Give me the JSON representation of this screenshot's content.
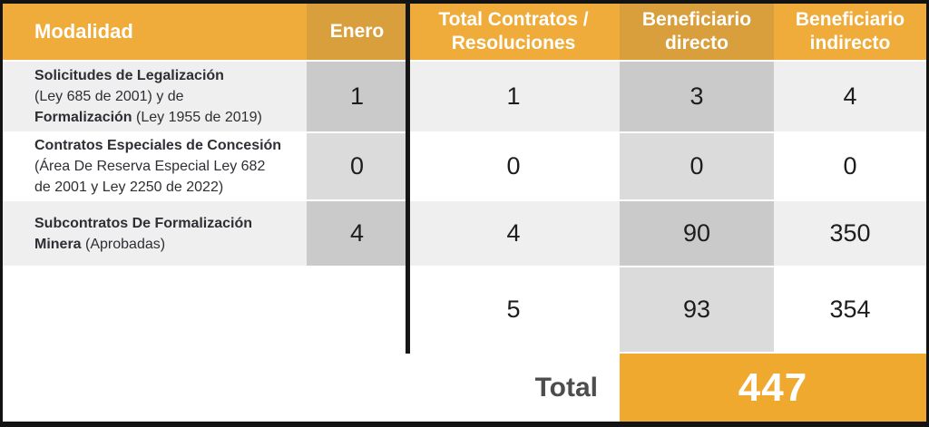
{
  "chart_data": {
    "type": "table",
    "title": "",
    "columns": [
      "Modalidad",
      "Enero",
      "Total Contratos / Resoluciones",
      "Beneficiario directo",
      "Beneficiario indirecto"
    ],
    "rows": [
      [
        "Solicitudes de Legalización (Ley 685 de 2001) y de Formalización (Ley 1955 de 2019)",
        1,
        1,
        3,
        4
      ],
      [
        "Contratos Especiales de Concesión (Área De Reserva Especial Ley 682 de 2001 y Ley 2250 de 2022)",
        0,
        0,
        0,
        0
      ],
      [
        "Subcontratos De Formalización Minera (Aprobadas)",
        4,
        4,
        90,
        350
      ]
    ],
    "subtotals": {
      "total_contratos": 5,
      "beneficiario_directo": 93,
      "beneficiario_indirecto": 354
    },
    "grand_total": 447
  },
  "header": {
    "modalidad": "Modalidad",
    "enero": "Enero",
    "total_contratos": "Total Contratos / Resoluciones",
    "beneficiario_directo": "Beneficiario directo",
    "beneficiario_indirecto": "Beneficiario indirecto"
  },
  "rows": [
    {
      "l1": "Solicitudes de Legalización",
      "l2": "(Ley 685 de 2001) y de",
      "l3_bold": "Formalización",
      "l3_rest": "(Ley 1955 de 2019)",
      "enero": "1",
      "total": "1",
      "directo": "3",
      "indirecto": "4"
    },
    {
      "l1": "Contratos Especiales de Concesión",
      "l2": "(Área De Reserva Especial Ley 682",
      "l3": "de 2001 y Ley 2250 de 2022)",
      "enero": "0",
      "total": "0",
      "directo": "0",
      "indirecto": "0"
    },
    {
      "l1": "Subcontratos De Formalización",
      "l2_bold": "Minera",
      "l2_rest": "(Aprobadas)",
      "enero": "4",
      "total": "4",
      "directo": "90",
      "indirecto": "350"
    }
  ],
  "subtotal": {
    "total": "5",
    "directo": "93",
    "indirecto": "354"
  },
  "footer": {
    "total_label": "Total",
    "grand_total": "447"
  },
  "colors": {
    "header_amber_light": "#EFAC3B",
    "header_amber_dark": "#D89F3C",
    "grand_total_amber": "#F0A92F",
    "row_gray": "#EFEFEF",
    "cell_gray_dark": "#CACACA",
    "cell_gray_medium": "#DBDBDB",
    "border_black": "#131313",
    "header_text": "#FFFFFF",
    "body_text": "#2E2E34",
    "total_label_text": "#4D4D4D"
  }
}
